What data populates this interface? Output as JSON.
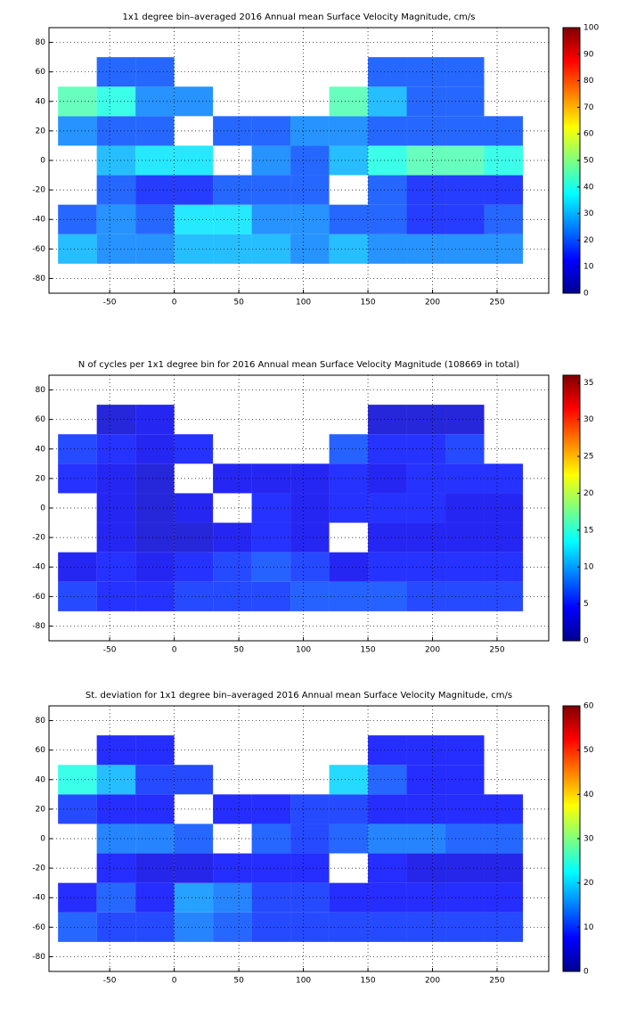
{
  "chart_data": [
    {
      "type": "heatmap",
      "title": "1x1 degree bin–averaged 2016 Annual mean Surface Velocity Magnitude, cm/s",
      "xbins": [
        -90,
        -60,
        -30,
        0,
        30,
        60,
        90,
        120,
        150,
        180,
        210,
        240,
        270
      ],
      "ybins": [
        -70,
        -50,
        -30,
        -10,
        10,
        30,
        50,
        70
      ],
      "values": [
        [
          30,
          25,
          25,
          30,
          30,
          30,
          25,
          30,
          25,
          25,
          25,
          25
        ],
        [
          20,
          25,
          20,
          35,
          35,
          25,
          25,
          20,
          20,
          15,
          15,
          20
        ],
        [
          null,
          20,
          15,
          15,
          20,
          20,
          20,
          null,
          20,
          15,
          15,
          15
        ],
        [
          null,
          30,
          35,
          35,
          null,
          25,
          20,
          30,
          40,
          45,
          45,
          40
        ],
        [
          25,
          20,
          20,
          null,
          20,
          20,
          25,
          25,
          20,
          20,
          20,
          20
        ],
        [
          45,
          40,
          25,
          25,
          null,
          null,
          null,
          45,
          30,
          20,
          20,
          null
        ],
        [
          null,
          20,
          20,
          null,
          null,
          null,
          null,
          null,
          20,
          20,
          20,
          null
        ]
      ],
      "xlim": [
        -97,
        290
      ],
      "ylim": [
        -90,
        90
      ],
      "xticks": [
        -50,
        0,
        50,
        100,
        150,
        200,
        250
      ],
      "yticks": [
        -80,
        -60,
        -40,
        -20,
        0,
        20,
        40,
        60,
        80
      ],
      "zlim": [
        0,
        100
      ],
      "zticks": [
        0,
        10,
        20,
        30,
        40,
        50,
        60,
        70,
        80,
        90,
        100
      ],
      "colormap": "jet",
      "grid": true
    },
    {
      "type": "heatmap",
      "title": "N of cycles per 1x1 degree bin for 2016 Annual mean Surface Velocity Magnitude (108669 in total)",
      "xbins": [
        -90,
        -60,
        -30,
        0,
        30,
        60,
        90,
        120,
        150,
        180,
        210,
        240,
        270
      ],
      "ybins": [
        -70,
        -50,
        -30,
        -10,
        10,
        30,
        50,
        70
      ],
      "values": [
        [
          6,
          5,
          5,
          6,
          6,
          6,
          7,
          7,
          7,
          6,
          6,
          6
        ],
        [
          4,
          5,
          4,
          5,
          6,
          7,
          6,
          4,
          5,
          5,
          5,
          5
        ],
        [
          null,
          4,
          3,
          3,
          4,
          5,
          4,
          null,
          4,
          4,
          4,
          4
        ],
        [
          null,
          4,
          3,
          4,
          null,
          5,
          4,
          5,
          5,
          5,
          4,
          4
        ],
        [
          5,
          4,
          3,
          null,
          4,
          4,
          4,
          5,
          4,
          5,
          5,
          5
        ],
        [
          6,
          5,
          4,
          5,
          null,
          null,
          null,
          7,
          5,
          5,
          6,
          null
        ],
        [
          null,
          3,
          4,
          null,
          null,
          null,
          null,
          null,
          3,
          3,
          3,
          null
        ]
      ],
      "xlim": [
        -97,
        290
      ],
      "ylim": [
        -90,
        90
      ],
      "xticks": [
        -50,
        0,
        50,
        100,
        150,
        200,
        250
      ],
      "yticks": [
        -80,
        -60,
        -40,
        -20,
        0,
        20,
        40,
        60,
        80
      ],
      "zlim": [
        0,
        36
      ],
      "zticks": [
        0,
        5,
        10,
        15,
        20,
        25,
        30,
        35
      ],
      "colormap": "jet",
      "grid": true
    },
    {
      "type": "heatmap",
      "title": "St. deviation for 1x1 degree bin–averaged 2016 Annual mean Surface Velocity Magnitude, cm/s",
      "xbins": [
        -90,
        -60,
        -30,
        0,
        30,
        60,
        90,
        120,
        150,
        180,
        210,
        240,
        270
      ],
      "ybins": [
        -70,
        -50,
        -30,
        -10,
        10,
        30,
        50,
        70
      ],
      "values": [
        [
          12,
          10,
          10,
          14,
          12,
          10,
          10,
          10,
          10,
          10,
          10,
          10
        ],
        [
          8,
          12,
          8,
          16,
          14,
          10,
          10,
          8,
          8,
          8,
          8,
          8
        ],
        [
          null,
          8,
          6,
          6,
          8,
          8,
          8,
          null,
          8,
          6,
          6,
          6
        ],
        [
          null,
          14,
          14,
          12,
          null,
          12,
          10,
          12,
          14,
          14,
          12,
          12
        ],
        [
          10,
          8,
          8,
          null,
          8,
          8,
          10,
          10,
          8,
          8,
          8,
          8
        ],
        [
          24,
          18,
          10,
          10,
          null,
          null,
          null,
          20,
          12,
          8,
          8,
          null
        ],
        [
          null,
          8,
          8,
          null,
          null,
          null,
          null,
          null,
          8,
          8,
          8,
          null
        ]
      ],
      "xlim": [
        -97,
        290
      ],
      "ylim": [
        -90,
        90
      ],
      "xticks": [
        -50,
        0,
        50,
        100,
        150,
        200,
        250
      ],
      "yticks": [
        -80,
        -60,
        -40,
        -20,
        0,
        20,
        40,
        60,
        80
      ],
      "zlim": [
        0,
        60
      ],
      "zticks": [
        0,
        10,
        20,
        30,
        40,
        50,
        60
      ],
      "colormap": "jet",
      "grid": true
    }
  ]
}
